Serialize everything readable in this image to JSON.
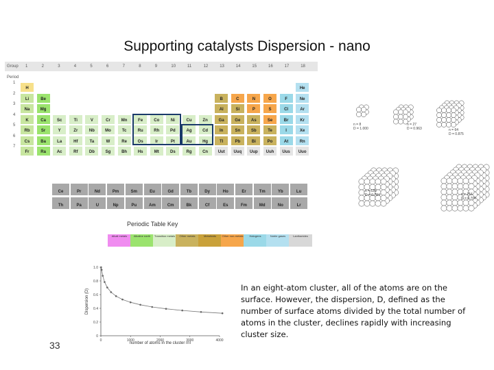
{
  "slide": {
    "title": "Supporting catalysts Dispersion - nano",
    "page_number": "33",
    "description": "In an eight-atom cluster, all of the atoms are on the surface. However, the dispersion, D, defined as the number of surface atoms divided by the total number of atoms in the cluster, declines rapidly with increasing cluster size."
  },
  "periodic_table": {
    "group_label": "Group",
    "period_label": "Period",
    "groups": [
      "1",
      "2",
      "3",
      "4",
      "5",
      "6",
      "7",
      "8",
      "9",
      "10",
      "11",
      "12",
      "13",
      "14",
      "15",
      "16",
      "17",
      "18"
    ],
    "periods": [
      "1",
      "2",
      "3",
      "4",
      "5",
      "6",
      "7"
    ],
    "rows": [
      [
        [
          "H",
          1,
          "#f7e08a"
        ],
        [
          "He",
          18,
          "#b4e0f0"
        ]
      ],
      [
        [
          "Li",
          1,
          "#c8e6a0"
        ],
        [
          "Be",
          2,
          "#9be36e"
        ],
        [
          "B",
          13,
          "#c9b25e"
        ],
        [
          "C",
          14,
          "#f6a64b"
        ],
        [
          "N",
          15,
          "#f6a64b"
        ],
        [
          "O",
          16,
          "#f6a64b"
        ],
        [
          "F",
          17,
          "#9bd9e8"
        ],
        [
          "Ne",
          18,
          "#b4e0f0"
        ]
      ],
      [
        [
          "Na",
          1,
          "#c8e6a0"
        ],
        [
          "Mg",
          2,
          "#9be36e"
        ],
        [
          "Al",
          13,
          "#c9b25e"
        ],
        [
          "Si",
          14,
          "#c9b25e"
        ],
        [
          "P",
          15,
          "#f6a64b"
        ],
        [
          "S",
          16,
          "#f6a64b"
        ],
        [
          "Cl",
          17,
          "#9bd9e8"
        ],
        [
          "Ar",
          18,
          "#b4e0f0"
        ]
      ],
      [
        [
          "K",
          1,
          "#c8e6a0"
        ],
        [
          "Ca",
          2,
          "#9be36e"
        ],
        [
          "Sc",
          3,
          "#d8eec8"
        ],
        [
          "Ti",
          4,
          "#d8eec8"
        ],
        [
          "V",
          5,
          "#d8eec8"
        ],
        [
          "Cr",
          6,
          "#d8eec8"
        ],
        [
          "Mn",
          7,
          "#d8eec8"
        ],
        [
          "Fe",
          8,
          "#d8eec8"
        ],
        [
          "Co",
          9,
          "#d8eec8"
        ],
        [
          "Ni",
          10,
          "#d8eec8"
        ],
        [
          "Cu",
          11,
          "#d8eec8"
        ],
        [
          "Zn",
          12,
          "#d8eec8"
        ],
        [
          "Ga",
          13,
          "#c9b25e"
        ],
        [
          "Ge",
          14,
          "#c9b25e"
        ],
        [
          "As",
          15,
          "#c9b25e"
        ],
        [
          "Se",
          16,
          "#f6a64b"
        ],
        [
          "Br",
          17,
          "#9bd9e8"
        ],
        [
          "Kr",
          18,
          "#b4e0f0"
        ]
      ],
      [
        [
          "Rb",
          1,
          "#c8e6a0"
        ],
        [
          "Sr",
          2,
          "#9be36e"
        ],
        [
          "Y",
          3,
          "#d8eec8"
        ],
        [
          "Zr",
          4,
          "#d8eec8"
        ],
        [
          "Nb",
          5,
          "#d8eec8"
        ],
        [
          "Mo",
          6,
          "#d8eec8"
        ],
        [
          "Tc",
          7,
          "#d8eec8"
        ],
        [
          "Ru",
          8,
          "#d8eec8"
        ],
        [
          "Rh",
          9,
          "#d8eec8"
        ],
        [
          "Pd",
          10,
          "#d8eec8"
        ],
        [
          "Ag",
          11,
          "#d8eec8"
        ],
        [
          "Cd",
          12,
          "#d8eec8"
        ],
        [
          "In",
          13,
          "#c9b25e"
        ],
        [
          "Sn",
          14,
          "#c9b25e"
        ],
        [
          "Sb",
          15,
          "#c9b25e"
        ],
        [
          "Te",
          16,
          "#c9b25e"
        ],
        [
          "I",
          17,
          "#9bd9e8"
        ],
        [
          "Xe",
          18,
          "#b4e0f0"
        ]
      ],
      [
        [
          "Cs",
          1,
          "#c8e6a0"
        ],
        [
          "Ba",
          2,
          "#9be36e"
        ],
        [
          "La",
          3,
          "#d8eec8"
        ],
        [
          "Hf",
          4,
          "#d8eec8"
        ],
        [
          "Ta",
          5,
          "#d8eec8"
        ],
        [
          "W",
          6,
          "#d8eec8"
        ],
        [
          "Re",
          7,
          "#d8eec8"
        ],
        [
          "Os",
          8,
          "#d8eec8"
        ],
        [
          "Ir",
          9,
          "#d8eec8"
        ],
        [
          "Pt",
          10,
          "#d8eec8"
        ],
        [
          "Au",
          11,
          "#d8eec8"
        ],
        [
          "Hg",
          12,
          "#d8eec8"
        ],
        [
          "Tl",
          13,
          "#c9b25e"
        ],
        [
          "Pb",
          14,
          "#c9b25e"
        ],
        [
          "Bi",
          15,
          "#c9b25e"
        ],
        [
          "Po",
          16,
          "#c9b25e"
        ],
        [
          "At",
          17,
          "#9bd9e8"
        ],
        [
          "Rn",
          18,
          "#b4e0f0"
        ]
      ],
      [
        [
          "Fr",
          1,
          "#c8e6a0"
        ],
        [
          "Ra",
          2,
          "#9be36e"
        ],
        [
          "Ac",
          3,
          "#d8eec8"
        ],
        [
          "Rf",
          4,
          "#d8eec8"
        ],
        [
          "Db",
          5,
          "#d8eec8"
        ],
        [
          "Sg",
          6,
          "#d8eec8"
        ],
        [
          "Bh",
          7,
          "#d8eec8"
        ],
        [
          "Hs",
          8,
          "#d8eec8"
        ],
        [
          "Mt",
          9,
          "#d8eec8"
        ],
        [
          "Ds",
          10,
          "#d8eec8"
        ],
        [
          "Rg",
          11,
          "#d8eec8"
        ],
        [
          "Cn",
          12,
          "#d8eec8"
        ],
        [
          "Uut",
          13,
          "#e4e4e4"
        ],
        [
          "Uuq",
          14,
          "#e4e4e4"
        ],
        [
          "Uup",
          15,
          "#e4e4e4"
        ],
        [
          "Uuh",
          16,
          "#e4e4e4"
        ],
        [
          "Uus",
          17,
          "#e4e4e4"
        ],
        [
          "Uuo",
          18,
          "#e4e4e4"
        ]
      ]
    ],
    "lanthanides": [
      "Ce",
      "Pr",
      "Nd",
      "Pm",
      "Sm",
      "Eu",
      "Gd",
      "Tb",
      "Dy",
      "Ho",
      "Er",
      "Tm",
      "Yb",
      "Lu"
    ],
    "actinides": [
      "Th",
      "Pa",
      "U",
      "Np",
      "Pu",
      "Am",
      "Cm",
      "Bk",
      "Cf",
      "Es",
      "Fm",
      "Md",
      "No",
      "Lr"
    ],
    "key_title": "Periodic Table Key",
    "key_items": [
      {
        "label": "Alkali metals",
        "color": "#f08cf0"
      },
      {
        "label": "Alkaline earth",
        "color": "#9be36e"
      },
      {
        "label": "Transition metals",
        "color": "#d8eec8"
      },
      {
        "label": "Other metals",
        "color": "#c9b25e"
      },
      {
        "label": "Metalloids",
        "color": "#c9a13a"
      },
      {
        "label": "Other non-metals",
        "color": "#f6a64b"
      },
      {
        "label": "Halogens",
        "color": "#9bd9e8"
      },
      {
        "label": "Noble gases",
        "color": "#b4e0f0"
      },
      {
        "label": "Lanthanides",
        "color": "#d8d8d8"
      }
    ]
  },
  "clusters": {
    "labels": [
      {
        "text": "n = 8\nD = 1.000"
      },
      {
        "text": "n = 27\nD = 0.963"
      },
      {
        "text": "n = 64\nD = 0.875"
      },
      {
        "text": "n = 125\nD = 0.784"
      },
      {
        "text": "n = 216\nD = 0.704"
      }
    ]
  },
  "chart_data": {
    "type": "line",
    "xlabel": "number of atoms in the cluster (n)",
    "ylabel": "Dispersion (D)",
    "xticks": [
      "0",
      "1000",
      "2000",
      "3000",
      "4000"
    ],
    "yticks": [
      "0",
      "0.2",
      "0.4",
      "0.6",
      "0.8",
      "1.0"
    ],
    "xlim": [
      0,
      4000
    ],
    "ylim": [
      0,
      1.0
    ],
    "x": [
      8,
      27,
      64,
      125,
      216,
      343,
      512,
      729,
      1000,
      1331,
      1728,
      2197,
      2744,
      3375,
      4096
    ],
    "y": [
      1.0,
      0.963,
      0.875,
      0.784,
      0.704,
      0.636,
      0.578,
      0.529,
      0.488,
      0.452,
      0.42,
      0.393,
      0.369,
      0.347,
      0.328
    ]
  }
}
